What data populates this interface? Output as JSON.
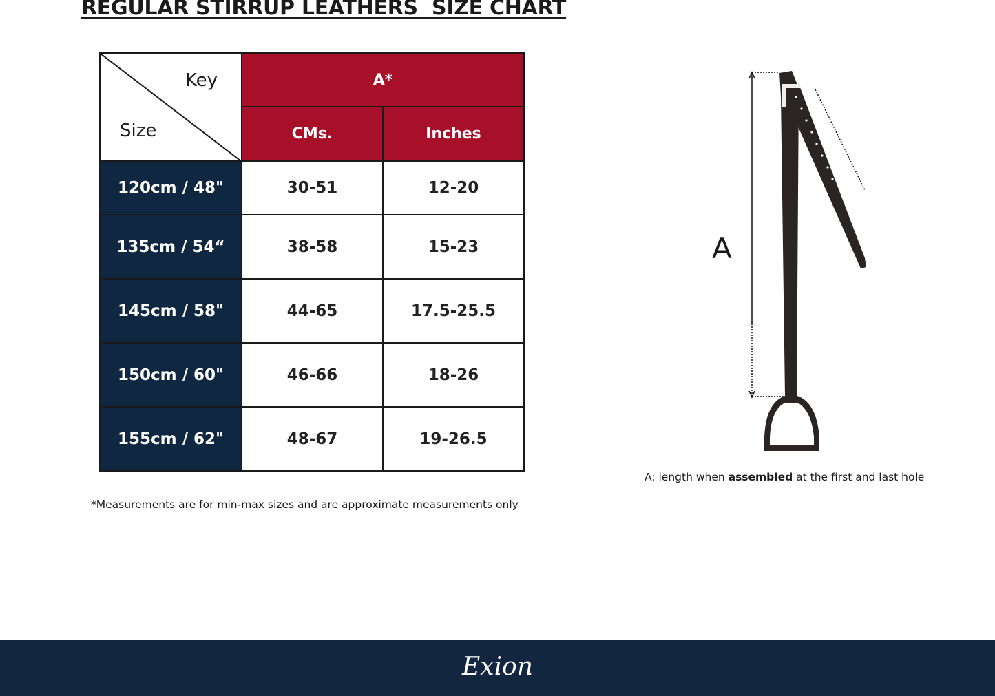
{
  "title": "REGULAR STIRRUP LEATHERS  SIZE CHART",
  "table": {
    "corner_key": "Key",
    "corner_size": "Size",
    "group_header": "A*",
    "columns": [
      "CMs.",
      "Inches"
    ],
    "rows": [
      {
        "size": "120cm / 48\"",
        "cms": "30-51",
        "inches": "12-20"
      },
      {
        "size": "135cm / 54“",
        "cms": "38-58",
        "inches": "15-23"
      },
      {
        "size": "145cm / 58\"",
        "cms": "44-65",
        "inches": "17.5-25.5"
      },
      {
        "size": "150cm / 60\"",
        "cms": "46-66",
        "inches": "18-26"
      },
      {
        "size": "155cm / 62\"",
        "cms": "48-67",
        "inches": "19-26.5"
      }
    ]
  },
  "note": "*Measurements are for min-max sizes and are approximate measurements only",
  "diagram": {
    "label": "A",
    "caption_pre": "A: length when ",
    "caption_bold": "assembled",
    "caption_post": " at the first and last hole"
  },
  "footer": {
    "logo": "Exion"
  },
  "colors": {
    "header_red": "#a8102a",
    "size_navy": "#0f2741",
    "footer_navy": "#13263f"
  }
}
